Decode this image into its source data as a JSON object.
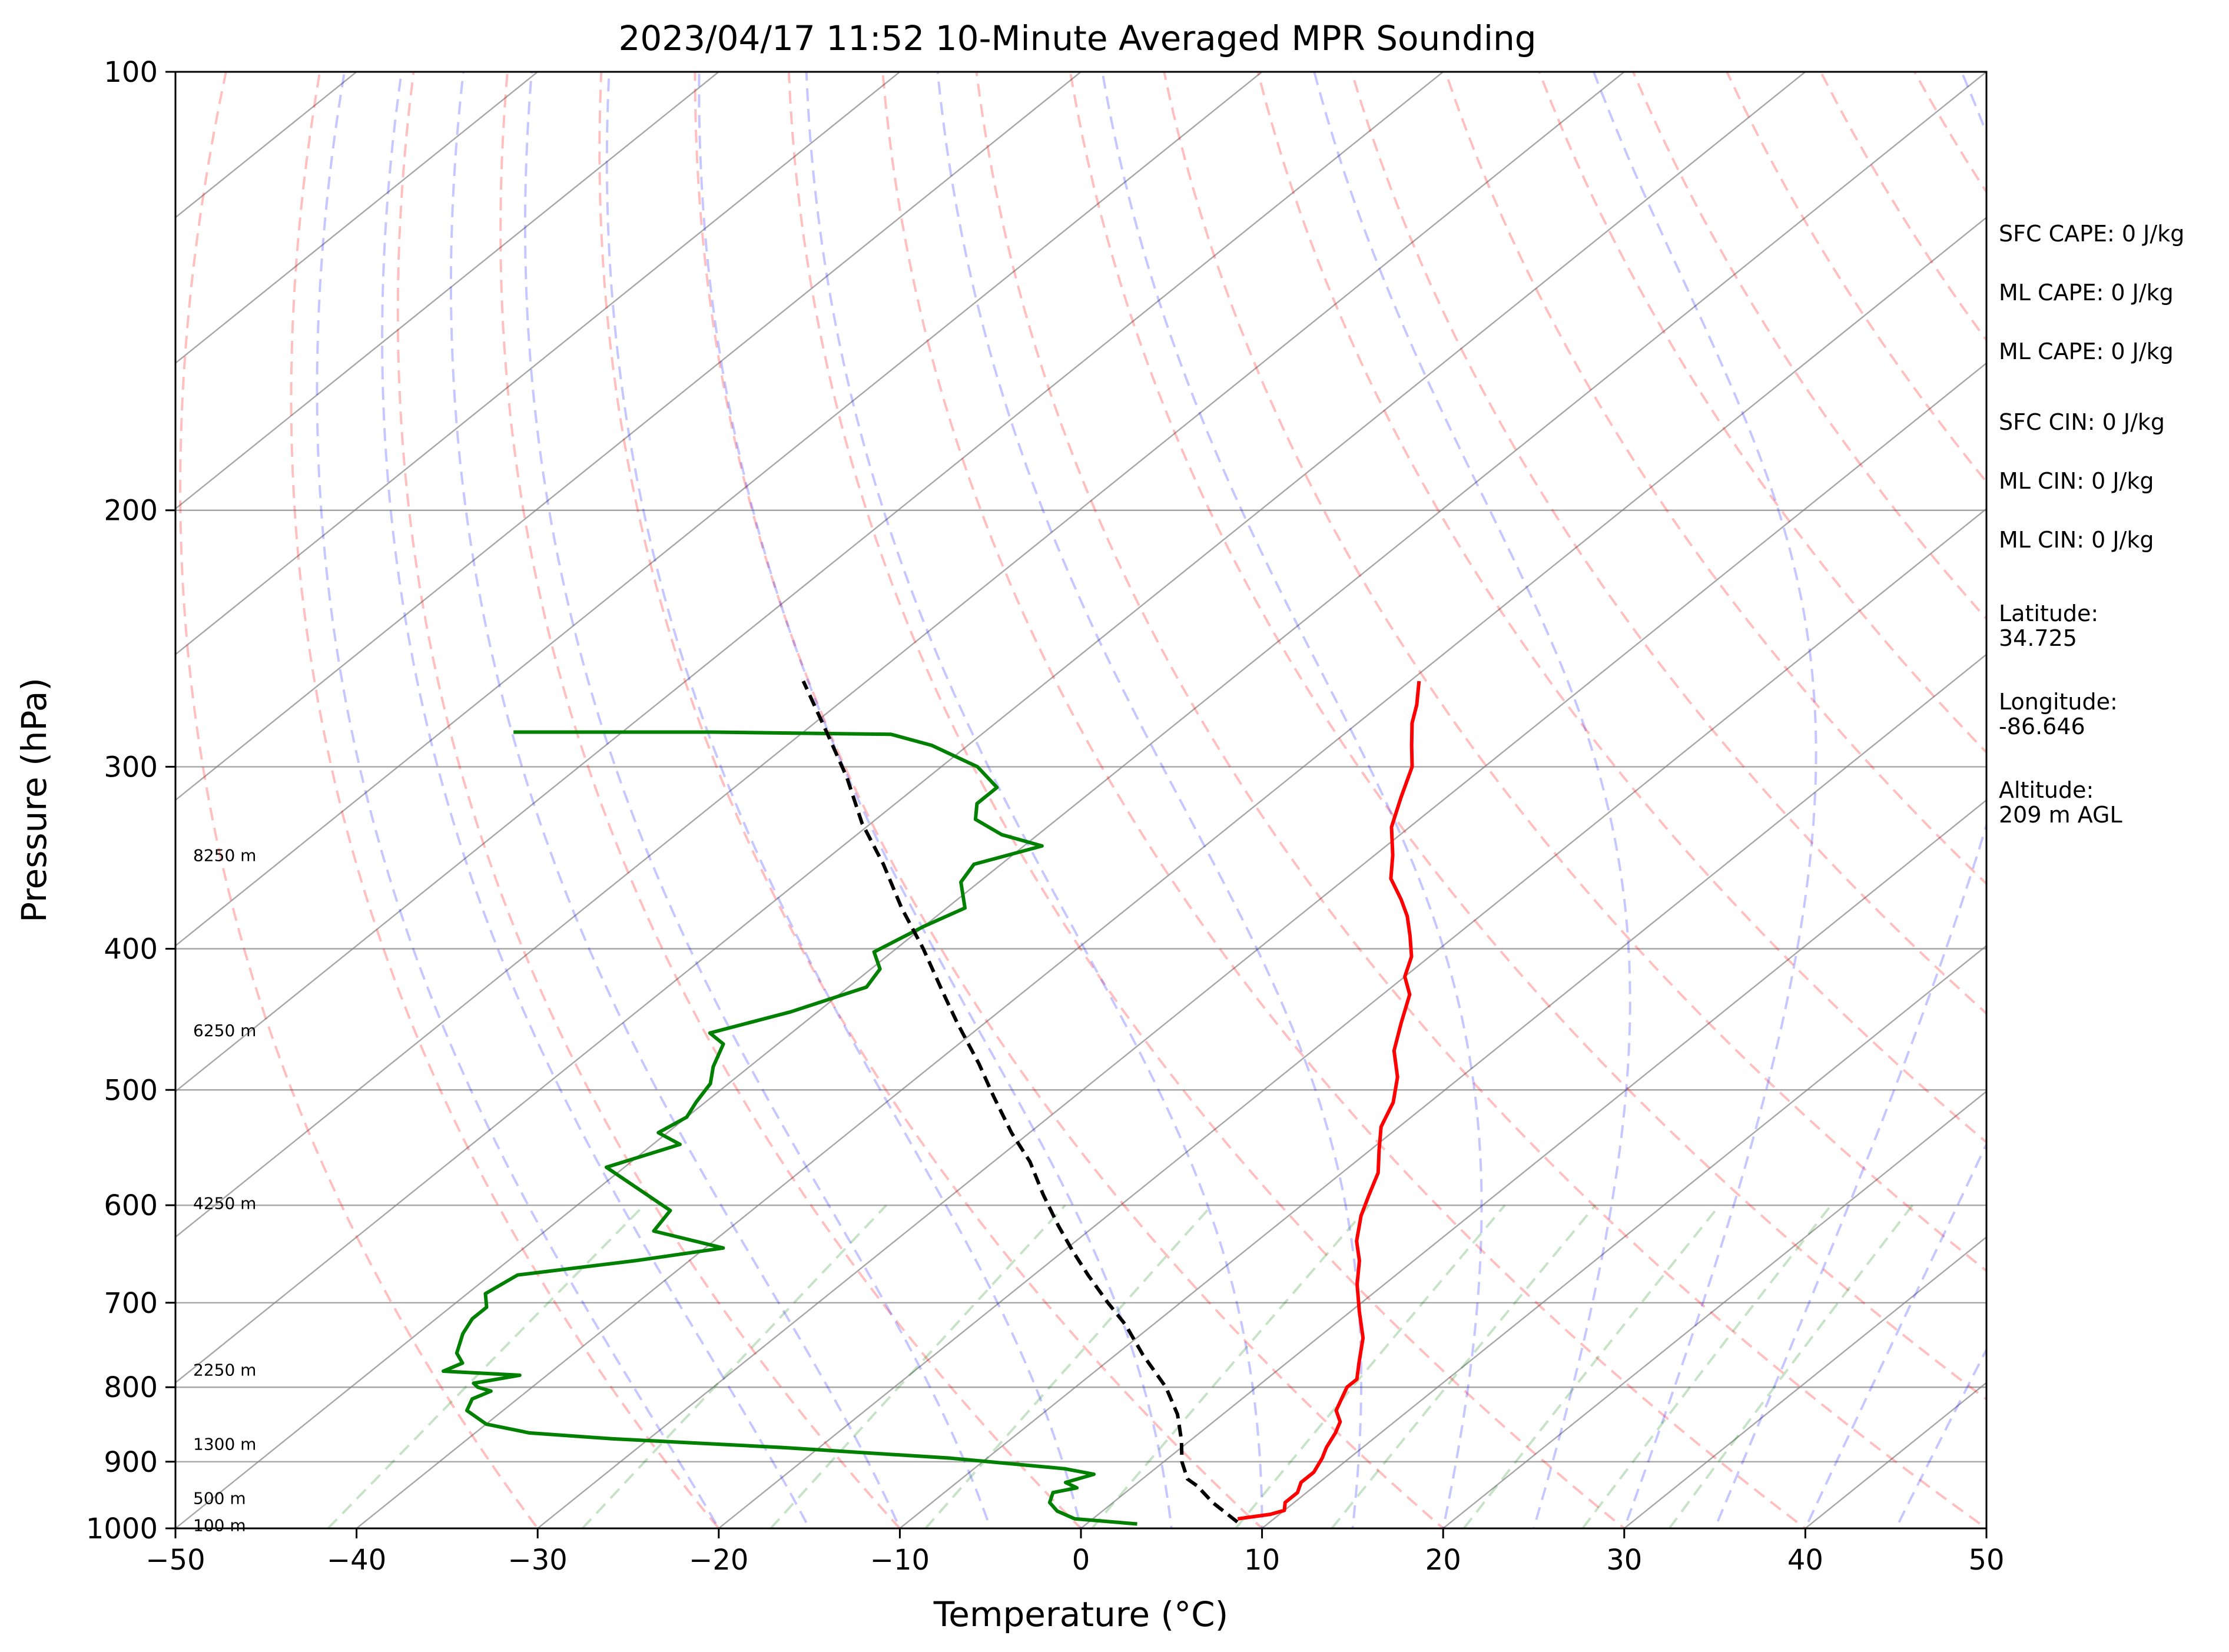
{
  "chart_data": {
    "type": "line",
    "title": "2023/04/17 11:52 10-Minute Averaged MPR Sounding",
    "xlabel": "Temperature (°C)",
    "ylabel": "Pressure (hPa)",
    "xlim": [
      -50,
      50
    ],
    "ylim": [
      1000,
      100
    ],
    "y_scale": "log",
    "skew_t": true,
    "grid": true,
    "x_ticks": [
      "−50",
      "−40",
      "−30",
      "−20",
      "−10",
      "0",
      "10",
      "20",
      "30",
      "40",
      "50"
    ],
    "y_ticks": [
      "100",
      "200",
      "300",
      "400",
      "500",
      "600",
      "700",
      "800",
      "900",
      "1000"
    ],
    "y_tick_values": [
      100,
      200,
      300,
      400,
      500,
      600,
      700,
      800,
      900,
      1000
    ],
    "height_labels": [
      {
        "text": "8250 m",
        "p": 345
      },
      {
        "text": "6250 m",
        "p": 455
      },
      {
        "text": "4250 m",
        "p": 598
      },
      {
        "text": "2250 m",
        "p": 778
      },
      {
        "text": "1300 m",
        "p": 875
      },
      {
        "text": "500 m",
        "p": 953
      },
      {
        "text": "100 m",
        "p": 995
      }
    ],
    "series": [
      {
        "color": "#ff0000",
        "style": "solid",
        "points": [
          [
            8.0,
            985
          ],
          [
            9.5,
            978
          ],
          [
            10.0,
            972
          ],
          [
            9.5,
            960
          ],
          [
            9.5,
            945
          ],
          [
            9.0,
            930
          ],
          [
            9.0,
            915
          ],
          [
            8.5,
            895
          ],
          [
            8.0,
            880
          ],
          [
            7.5,
            860
          ],
          [
            7.0,
            845
          ],
          [
            6.0,
            830
          ],
          [
            5.5,
            815
          ],
          [
            5.0,
            800
          ],
          [
            5.0,
            790
          ],
          [
            4.0,
            770
          ],
          [
            2.5,
            740
          ],
          [
            0.5,
            710
          ],
          [
            -1.5,
            680
          ],
          [
            -3.0,
            655
          ],
          [
            -4.5,
            635
          ],
          [
            -6.0,
            610
          ],
          [
            -7.0,
            590
          ],
          [
            -8.0,
            570
          ],
          [
            -9.5,
            550
          ],
          [
            -11.0,
            530
          ],
          [
            -12.0,
            510
          ],
          [
            -13.5,
            490
          ],
          [
            -15.5,
            470
          ],
          [
            -17.0,
            450
          ],
          [
            -18.5,
            430
          ],
          [
            -20.0,
            418
          ],
          [
            -21.0,
            405
          ],
          [
            -22.5,
            392
          ],
          [
            -24.0,
            380
          ],
          [
            -25.5,
            370
          ],
          [
            -27.5,
            358
          ],
          [
            -29.0,
            345
          ],
          [
            -31.0,
            330
          ],
          [
            -32.5,
            315
          ],
          [
            -34.0,
            300
          ],
          [
            -35.5,
            290
          ],
          [
            -37.0,
            280
          ],
          [
            -38.0,
            272
          ],
          [
            -39.5,
            262
          ]
        ]
      },
      {
        "color": "#008000",
        "style": "solid",
        "points": [
          [
            2.8,
            993
          ],
          [
            -1.0,
            985
          ],
          [
            -2.5,
            973
          ],
          [
            -3.5,
            960
          ],
          [
            -4.0,
            945
          ],
          [
            -3.0,
            938
          ],
          [
            -4.0,
            930
          ],
          [
            -3.0,
            918
          ],
          [
            -5.0,
            910
          ],
          [
            -12.0,
            895
          ],
          [
            -22.0,
            880
          ],
          [
            -32.0,
            868
          ],
          [
            -37.0,
            860
          ],
          [
            -40.0,
            848
          ],
          [
            -42.0,
            830
          ],
          [
            -42.5,
            815
          ],
          [
            -42.0,
            805
          ],
          [
            -43.0,
            800
          ],
          [
            -43.5,
            795
          ],
          [
            -41.5,
            785
          ],
          [
            -46.0,
            780
          ],
          [
            -45.5,
            770
          ],
          [
            -46.5,
            758
          ],
          [
            -47.5,
            735
          ],
          [
            -48.0,
            718
          ],
          [
            -48.0,
            705
          ],
          [
            -49.0,
            690
          ],
          [
            -48.5,
            670
          ],
          [
            -43.0,
            655
          ],
          [
            -39.0,
            642
          ],
          [
            -44.0,
            625
          ],
          [
            -44.5,
            605
          ],
          [
            -51.0,
            565
          ],
          [
            -48.5,
            545
          ],
          [
            -50.5,
            535
          ],
          [
            -50.0,
            522
          ],
          [
            -50.5,
            510
          ],
          [
            -51.0,
            495
          ],
          [
            -52.0,
            482
          ],
          [
            -53.0,
            465
          ],
          [
            -54.5,
            457
          ],
          [
            -51.5,
            442
          ],
          [
            -49.0,
            425
          ],
          [
            -49.5,
            413
          ],
          [
            -51.0,
            402
          ],
          [
            -50.0,
            386
          ],
          [
            -49.0,
            375
          ],
          [
            -51.0,
            360
          ],
          [
            -51.5,
            350
          ],
          [
            -49.0,
            340
          ],
          [
            -52.0,
            334
          ],
          [
            -54.5,
            326
          ],
          [
            -55.5,
            318
          ],
          [
            -55.5,
            310
          ],
          [
            -58.0,
            300
          ],
          [
            -62.0,
            290
          ],
          [
            -65.0,
            285
          ],
          [
            -75.0,
            284
          ],
          [
            -86.0,
            284
          ]
        ]
      },
      {
        "color": "#000000",
        "style": "dashed",
        "points": [
          [
            8.2,
            990
          ],
          [
            5.5,
            960
          ],
          [
            3.5,
            935
          ],
          [
            2.5,
            925
          ],
          [
            1.0,
            900
          ],
          [
            -0.5,
            870
          ],
          [
            -2.5,
            835
          ],
          [
            -5.0,
            800
          ],
          [
            -8.5,
            760
          ],
          [
            -11.5,
            725
          ],
          [
            -14.0,
            700
          ],
          [
            -17.0,
            670
          ],
          [
            -19.5,
            645
          ],
          [
            -22.0,
            620
          ],
          [
            -25.0,
            590
          ],
          [
            -28.0,
            560
          ],
          [
            -31.0,
            535
          ],
          [
            -34.5,
            505
          ],
          [
            -37.5,
            480
          ],
          [
            -41.5,
            450
          ],
          [
            -44.5,
            428
          ],
          [
            -48.5,
            400
          ],
          [
            -52.5,
            375
          ],
          [
            -56.5,
            350
          ],
          [
            -60.5,
            328
          ],
          [
            -64.5,
            305
          ],
          [
            -68.5,
            285
          ],
          [
            -73.5,
            262
          ]
        ]
      }
    ],
    "background_lines": {
      "dry_adiabats_color": "#ff0000",
      "moist_adiabats_color": "#0000ff",
      "mixing_ratio_color": "#008000",
      "isotherms_color": "#808080"
    }
  },
  "info": [
    {
      "text": "SFC CAPE: 0 J/kg"
    },
    {
      "text": "ML CAPE: 0 J/kg"
    },
    {
      "text": "ML CAPE: 0 J/kg"
    },
    {
      "text": "SFC CIN: 0 J/kg"
    },
    {
      "text": "ML CIN: 0 J/kg"
    },
    {
      "text": "ML CIN: 0 J/kg"
    },
    {
      "text": "Latitude:",
      "value": "34.725"
    },
    {
      "text": "Longitude:",
      "value": "-86.646"
    },
    {
      "text": "Altitude:",
      "value": "209 m AGL"
    }
  ]
}
